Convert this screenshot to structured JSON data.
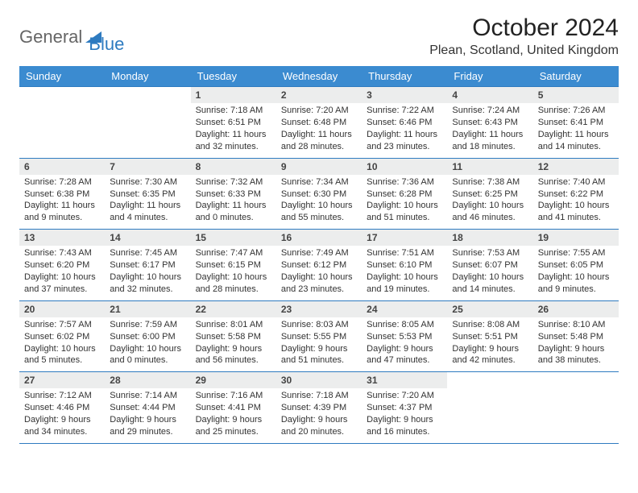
{
  "logo": {
    "text_gray": "General",
    "text_blue": "Blue"
  },
  "header": {
    "title": "October 2024",
    "location": "Plean, Scotland, United Kingdom"
  },
  "colors": {
    "header_bg": "#3b8bd0",
    "rule": "#2e7bc0",
    "daynum_bg": "#eceded"
  },
  "day_names": [
    "Sunday",
    "Monday",
    "Tuesday",
    "Wednesday",
    "Thursday",
    "Friday",
    "Saturday"
  ],
  "weeks": [
    [
      {
        "blank": true
      },
      {
        "blank": true
      },
      {
        "num": "1",
        "sunrise": "Sunrise: 7:18 AM",
        "sunset": "Sunset: 6:51 PM",
        "daylight1": "Daylight: 11 hours",
        "daylight2": "and 32 minutes."
      },
      {
        "num": "2",
        "sunrise": "Sunrise: 7:20 AM",
        "sunset": "Sunset: 6:48 PM",
        "daylight1": "Daylight: 11 hours",
        "daylight2": "and 28 minutes."
      },
      {
        "num": "3",
        "sunrise": "Sunrise: 7:22 AM",
        "sunset": "Sunset: 6:46 PM",
        "daylight1": "Daylight: 11 hours",
        "daylight2": "and 23 minutes."
      },
      {
        "num": "4",
        "sunrise": "Sunrise: 7:24 AM",
        "sunset": "Sunset: 6:43 PM",
        "daylight1": "Daylight: 11 hours",
        "daylight2": "and 18 minutes."
      },
      {
        "num": "5",
        "sunrise": "Sunrise: 7:26 AM",
        "sunset": "Sunset: 6:41 PM",
        "daylight1": "Daylight: 11 hours",
        "daylight2": "and 14 minutes."
      }
    ],
    [
      {
        "num": "6",
        "sunrise": "Sunrise: 7:28 AM",
        "sunset": "Sunset: 6:38 PM",
        "daylight1": "Daylight: 11 hours",
        "daylight2": "and 9 minutes."
      },
      {
        "num": "7",
        "sunrise": "Sunrise: 7:30 AM",
        "sunset": "Sunset: 6:35 PM",
        "daylight1": "Daylight: 11 hours",
        "daylight2": "and 4 minutes."
      },
      {
        "num": "8",
        "sunrise": "Sunrise: 7:32 AM",
        "sunset": "Sunset: 6:33 PM",
        "daylight1": "Daylight: 11 hours",
        "daylight2": "and 0 minutes."
      },
      {
        "num": "9",
        "sunrise": "Sunrise: 7:34 AM",
        "sunset": "Sunset: 6:30 PM",
        "daylight1": "Daylight: 10 hours",
        "daylight2": "and 55 minutes."
      },
      {
        "num": "10",
        "sunrise": "Sunrise: 7:36 AM",
        "sunset": "Sunset: 6:28 PM",
        "daylight1": "Daylight: 10 hours",
        "daylight2": "and 51 minutes."
      },
      {
        "num": "11",
        "sunrise": "Sunrise: 7:38 AM",
        "sunset": "Sunset: 6:25 PM",
        "daylight1": "Daylight: 10 hours",
        "daylight2": "and 46 minutes."
      },
      {
        "num": "12",
        "sunrise": "Sunrise: 7:40 AM",
        "sunset": "Sunset: 6:22 PM",
        "daylight1": "Daylight: 10 hours",
        "daylight2": "and 41 minutes."
      }
    ],
    [
      {
        "num": "13",
        "sunrise": "Sunrise: 7:43 AM",
        "sunset": "Sunset: 6:20 PM",
        "daylight1": "Daylight: 10 hours",
        "daylight2": "and 37 minutes."
      },
      {
        "num": "14",
        "sunrise": "Sunrise: 7:45 AM",
        "sunset": "Sunset: 6:17 PM",
        "daylight1": "Daylight: 10 hours",
        "daylight2": "and 32 minutes."
      },
      {
        "num": "15",
        "sunrise": "Sunrise: 7:47 AM",
        "sunset": "Sunset: 6:15 PM",
        "daylight1": "Daylight: 10 hours",
        "daylight2": "and 28 minutes."
      },
      {
        "num": "16",
        "sunrise": "Sunrise: 7:49 AM",
        "sunset": "Sunset: 6:12 PM",
        "daylight1": "Daylight: 10 hours",
        "daylight2": "and 23 minutes."
      },
      {
        "num": "17",
        "sunrise": "Sunrise: 7:51 AM",
        "sunset": "Sunset: 6:10 PM",
        "daylight1": "Daylight: 10 hours",
        "daylight2": "and 19 minutes."
      },
      {
        "num": "18",
        "sunrise": "Sunrise: 7:53 AM",
        "sunset": "Sunset: 6:07 PM",
        "daylight1": "Daylight: 10 hours",
        "daylight2": "and 14 minutes."
      },
      {
        "num": "19",
        "sunrise": "Sunrise: 7:55 AM",
        "sunset": "Sunset: 6:05 PM",
        "daylight1": "Daylight: 10 hours",
        "daylight2": "and 9 minutes."
      }
    ],
    [
      {
        "num": "20",
        "sunrise": "Sunrise: 7:57 AM",
        "sunset": "Sunset: 6:02 PM",
        "daylight1": "Daylight: 10 hours",
        "daylight2": "and 5 minutes."
      },
      {
        "num": "21",
        "sunrise": "Sunrise: 7:59 AM",
        "sunset": "Sunset: 6:00 PM",
        "daylight1": "Daylight: 10 hours",
        "daylight2": "and 0 minutes."
      },
      {
        "num": "22",
        "sunrise": "Sunrise: 8:01 AM",
        "sunset": "Sunset: 5:58 PM",
        "daylight1": "Daylight: 9 hours",
        "daylight2": "and 56 minutes."
      },
      {
        "num": "23",
        "sunrise": "Sunrise: 8:03 AM",
        "sunset": "Sunset: 5:55 PM",
        "daylight1": "Daylight: 9 hours",
        "daylight2": "and 51 minutes."
      },
      {
        "num": "24",
        "sunrise": "Sunrise: 8:05 AM",
        "sunset": "Sunset: 5:53 PM",
        "daylight1": "Daylight: 9 hours",
        "daylight2": "and 47 minutes."
      },
      {
        "num": "25",
        "sunrise": "Sunrise: 8:08 AM",
        "sunset": "Sunset: 5:51 PM",
        "daylight1": "Daylight: 9 hours",
        "daylight2": "and 42 minutes."
      },
      {
        "num": "26",
        "sunrise": "Sunrise: 8:10 AM",
        "sunset": "Sunset: 5:48 PM",
        "daylight1": "Daylight: 9 hours",
        "daylight2": "and 38 minutes."
      }
    ],
    [
      {
        "num": "27",
        "sunrise": "Sunrise: 7:12 AM",
        "sunset": "Sunset: 4:46 PM",
        "daylight1": "Daylight: 9 hours",
        "daylight2": "and 34 minutes."
      },
      {
        "num": "28",
        "sunrise": "Sunrise: 7:14 AM",
        "sunset": "Sunset: 4:44 PM",
        "daylight1": "Daylight: 9 hours",
        "daylight2": "and 29 minutes."
      },
      {
        "num": "29",
        "sunrise": "Sunrise: 7:16 AM",
        "sunset": "Sunset: 4:41 PM",
        "daylight1": "Daylight: 9 hours",
        "daylight2": "and 25 minutes."
      },
      {
        "num": "30",
        "sunrise": "Sunrise: 7:18 AM",
        "sunset": "Sunset: 4:39 PM",
        "daylight1": "Daylight: 9 hours",
        "daylight2": "and 20 minutes."
      },
      {
        "num": "31",
        "sunrise": "Sunrise: 7:20 AM",
        "sunset": "Sunset: 4:37 PM",
        "daylight1": "Daylight: 9 hours",
        "daylight2": "and 16 minutes."
      },
      {
        "blank": true
      },
      {
        "blank": true
      }
    ]
  ]
}
